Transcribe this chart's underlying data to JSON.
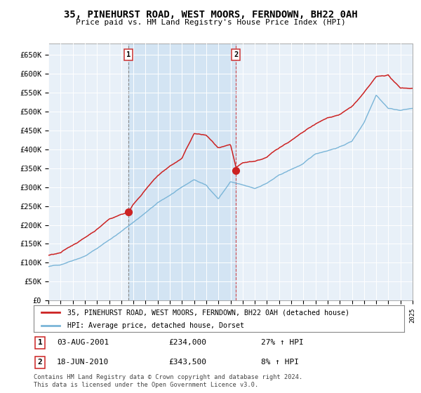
{
  "title": "35, PINEHURST ROAD, WEST MOORS, FERNDOWN, BH22 0AH",
  "subtitle": "Price paid vs. HM Land Registry's House Price Index (HPI)",
  "ylabel_ticks": [
    "£0",
    "£50K",
    "£100K",
    "£150K",
    "£200K",
    "£250K",
    "£300K",
    "£350K",
    "£400K",
    "£450K",
    "£500K",
    "£550K",
    "£600K",
    "£650K"
  ],
  "ytick_values": [
    0,
    50000,
    100000,
    150000,
    200000,
    250000,
    300000,
    350000,
    400000,
    450000,
    500000,
    550000,
    600000,
    650000
  ],
  "hpi_color": "#7ab5d8",
  "price_color": "#cc2222",
  "shade_color": "#c5ddf0",
  "background_color": "#e8f0f8",
  "sale1_year": 2001.58,
  "sale1_price": 234000,
  "sale2_year": 2010.46,
  "sale2_price": 343500,
  "legend_line1": "35, PINEHURST ROAD, WEST MOORS, FERNDOWN, BH22 0AH (detached house)",
  "legend_line2": "HPI: Average price, detached house, Dorset",
  "annotation1_label": "1",
  "annotation1_date": "03-AUG-2001",
  "annotation1_price": "£234,000",
  "annotation1_hpi": "27% ↑ HPI",
  "annotation2_label": "2",
  "annotation2_date": "18-JUN-2010",
  "annotation2_price": "£343,500",
  "annotation2_hpi": "8% ↑ HPI",
  "footer": "Contains HM Land Registry data © Crown copyright and database right 2024.\nThis data is licensed under the Open Government Licence v3.0.",
  "xmin": 1995,
  "xmax": 2025,
  "ymin": 0,
  "ymax": 680000
}
